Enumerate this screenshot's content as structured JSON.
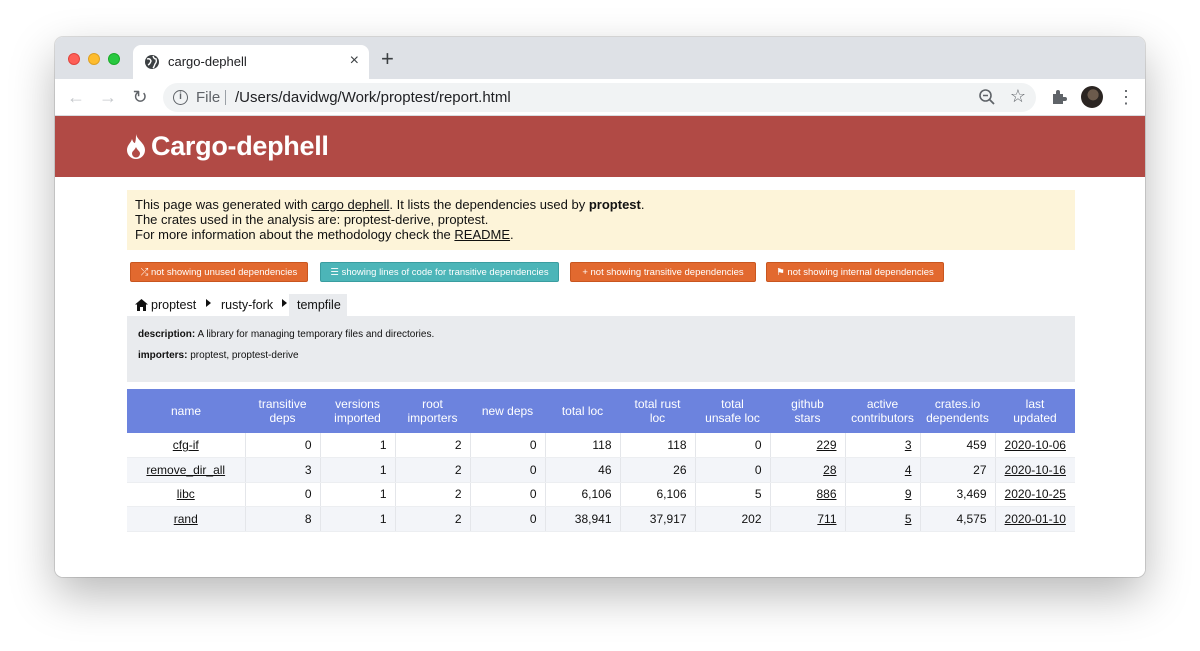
{
  "browser": {
    "tab_title": "cargo-dephell",
    "new_tab_label": "+",
    "close_label": "×",
    "scheme_label": "File",
    "url": "/Users/davidwg/Work/proptest/report.html"
  },
  "banner": {
    "title": "Cargo-dephell",
    "color": "#b14a45"
  },
  "notice": {
    "line1_prefix": "This page was generated with ",
    "line1_link": "cargo dephell",
    "line1_mid": ". It lists the dependencies used by ",
    "line1_bold": "proptest",
    "line1_end": ".",
    "line2": "The crates used in the analysis are: proptest-derive, proptest.",
    "line3_prefix": "For more information about the methodology check the ",
    "line3_link": "README",
    "line3_end": "."
  },
  "filters": [
    {
      "icon": "random-icon",
      "label": "not showing unused dependencies"
    },
    {
      "icon": "align-icon",
      "label": "showing lines of code for transitive dependencies"
    },
    {
      "icon": "plus-icon",
      "label": "not showing transitive dependencies"
    },
    {
      "icon": "flag-icon",
      "label": "not showing internal dependencies"
    }
  ],
  "breadcrumb": [
    "proptest",
    "rusty-fork",
    "tempfile"
  ],
  "details": {
    "description_label": "description:",
    "description": "A library for managing temporary files and directories.",
    "importers_label": "importers:",
    "importers": "proptest, proptest-derive"
  },
  "table": {
    "headers": [
      [
        "name"
      ],
      [
        "transitive",
        "deps"
      ],
      [
        "versions",
        "imported"
      ],
      [
        "root",
        "importers"
      ],
      [
        "new deps"
      ],
      [
        "total loc"
      ],
      [
        "total rust",
        "loc"
      ],
      [
        "total",
        "unsafe loc"
      ],
      [
        "github",
        "stars"
      ],
      [
        "active",
        "contributors"
      ],
      [
        "crates.io",
        "dependents"
      ],
      [
        "last",
        "updated"
      ]
    ],
    "rows": [
      [
        "cfg-if",
        "0",
        "1",
        "2",
        "0",
        "118",
        "118",
        "0",
        "229",
        "3",
        "459",
        "2020-10-06"
      ],
      [
        "remove_dir_all",
        "3",
        "1",
        "2",
        "0",
        "46",
        "26",
        "0",
        "28",
        "4",
        "27",
        "2020-10-16"
      ],
      [
        "libc",
        "0",
        "1",
        "2",
        "0",
        "6,106",
        "6,106",
        "5",
        "886",
        "9",
        "3,469",
        "2020-10-25"
      ],
      [
        "rand",
        "8",
        "1",
        "2",
        "0",
        "38,941",
        "37,917",
        "202",
        "711",
        "5",
        "4,575",
        "2020-01-10"
      ]
    ],
    "header_color": "#6c83de"
  }
}
